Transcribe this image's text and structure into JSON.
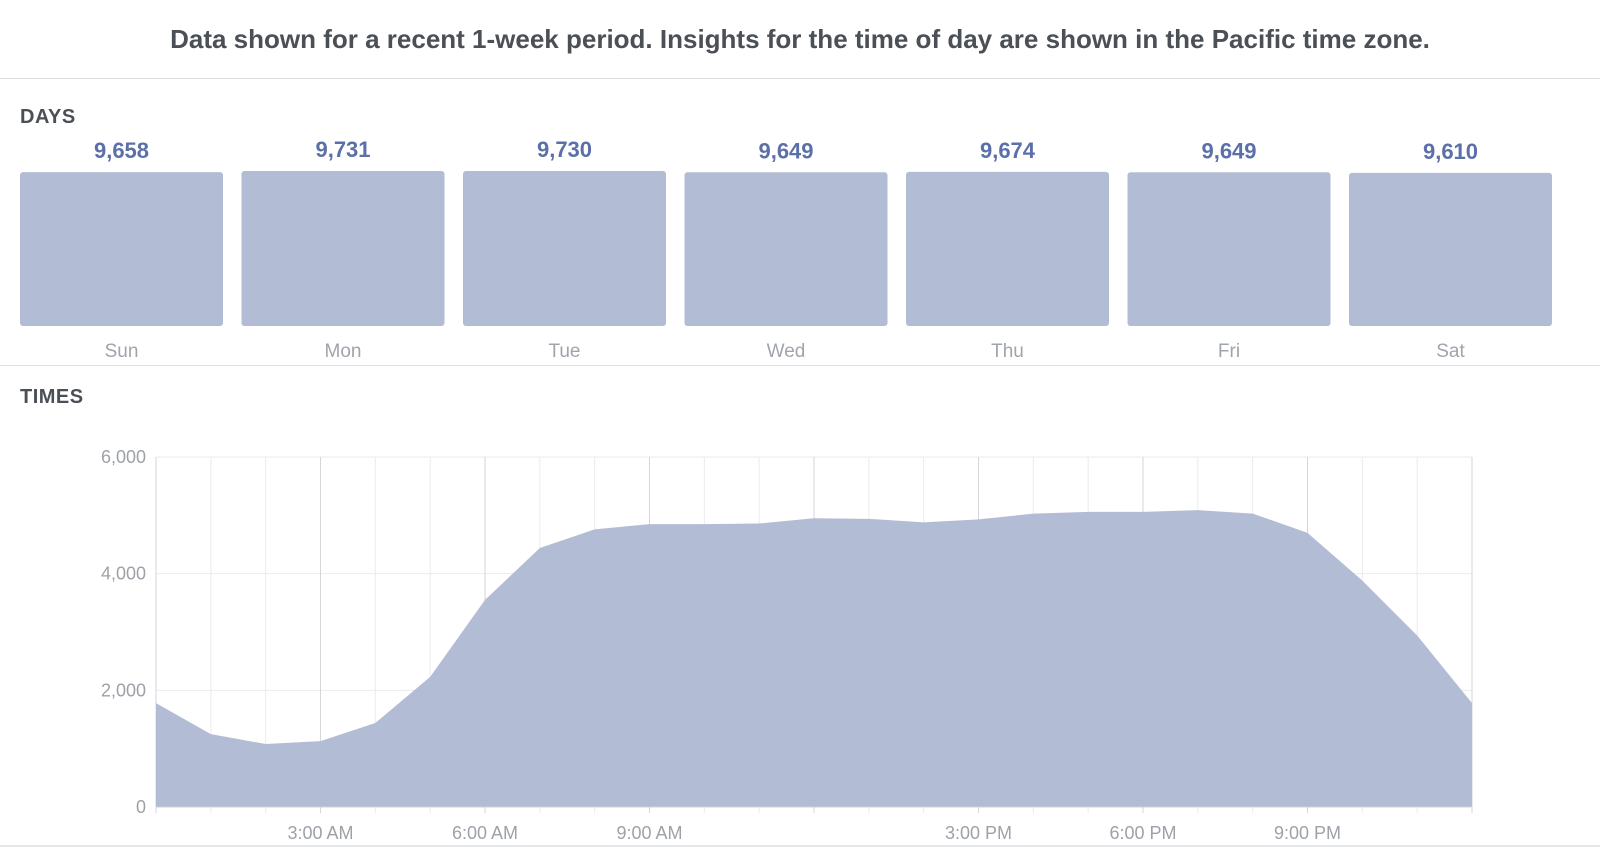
{
  "notice": "Data shown for a recent 1-week period. Insights for the time of day are shown in the Pacific time zone.",
  "colors": {
    "bar_fill": "#b2bcd4",
    "area_fill": "#b2bcd4",
    "value_text": "#5b6fa8",
    "grid": "#e9ebee"
  },
  "chart_data": [
    {
      "type": "bar",
      "title": "DAYS",
      "categories": [
        "Sun",
        "Mon",
        "Tue",
        "Wed",
        "Thu",
        "Fri",
        "Sat"
      ],
      "values": [
        9658,
        9731,
        9730,
        9649,
        9674,
        9649,
        9610
      ],
      "value_labels": [
        "9,658",
        "9,731",
        "9,730",
        "9,649",
        "9,674",
        "9,649",
        "9,610"
      ]
    },
    {
      "type": "area",
      "title": "TIMES",
      "xlabel": "",
      "ylabel": "",
      "x": [
        0,
        1,
        2,
        3,
        4,
        5,
        6,
        7,
        8,
        9,
        10,
        11,
        12,
        13,
        14,
        15,
        16,
        17,
        18,
        19,
        20,
        21,
        22,
        23,
        24
      ],
      "values": [
        1780,
        1250,
        1080,
        1130,
        1440,
        2230,
        3550,
        4440,
        4760,
        4850,
        4850,
        4860,
        4950,
        4940,
        4880,
        4930,
        5030,
        5060,
        5060,
        5090,
        5030,
        4700,
        3880,
        2940,
        1780
      ],
      "ylim": [
        0,
        6000
      ],
      "yticks": [
        0,
        2000,
        4000,
        6000
      ],
      "ytick_labels": [
        "0",
        "2,000",
        "4,000",
        "6,000"
      ],
      "xticks": [
        3,
        6,
        9,
        15,
        18,
        21
      ],
      "xtick_labels": [
        "3:00 AM",
        "6:00 AM",
        "9:00 AM",
        "3:00 PM",
        "6:00 PM",
        "9:00 PM"
      ],
      "grid": true
    }
  ]
}
